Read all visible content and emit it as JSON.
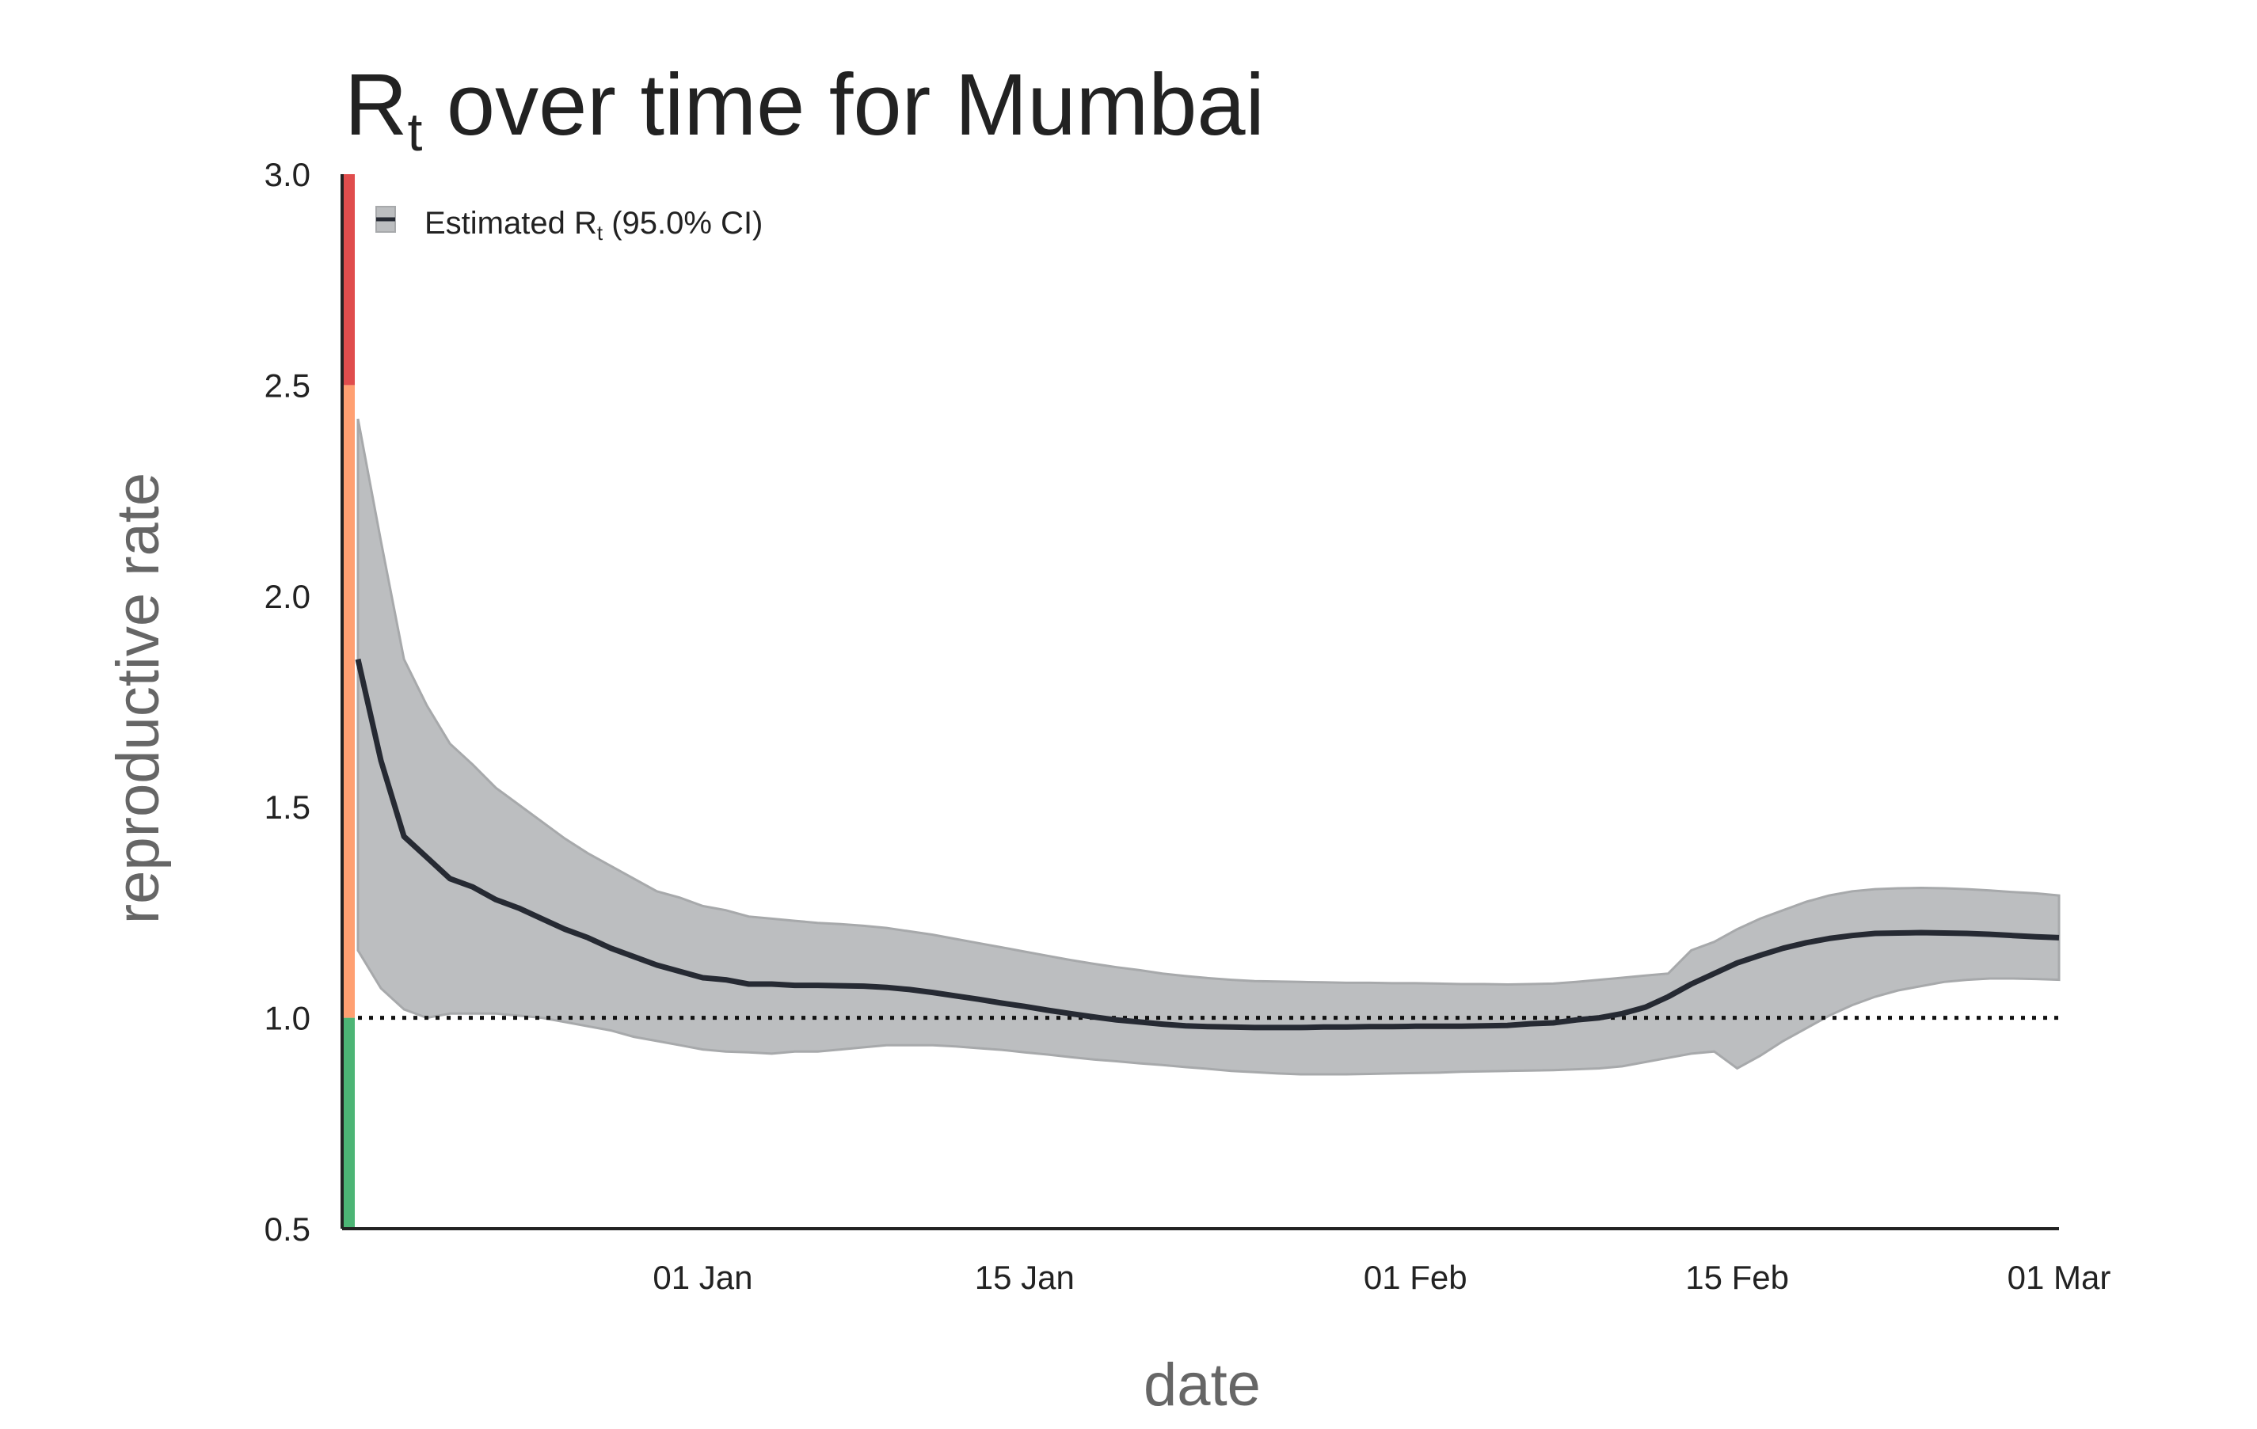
{
  "chart_data": {
    "type": "line",
    "title": "R",
    "title_subscript": "t",
    "title_suffix": " over time for Mumbai",
    "xlabel": "date",
    "ylabel": "reproductive rate",
    "x_range": [
      "2020-12-17",
      "2021-03-01"
    ],
    "ylim": [
      0.5,
      3.0
    ],
    "y_ticks": [
      "0.5",
      "1.0",
      "1.5",
      "2.0",
      "2.5",
      "3.0"
    ],
    "x_ticks": [
      {
        "date": "2021-01-01",
        "label": "01 Jan"
      },
      {
        "date": "2021-01-15",
        "label": "15 Jan"
      },
      {
        "date": "2021-02-01",
        "label": "01 Feb"
      },
      {
        "date": "2021-02-15",
        "label": "15 Feb"
      },
      {
        "date": "2021-03-01",
        "label": "01 Mar"
      }
    ],
    "reference_line": {
      "y": 1.0,
      "style": "dotted"
    },
    "risk_bands": [
      {
        "from": 0.5,
        "to": 1.0,
        "color": "#4cb575"
      },
      {
        "from": 1.0,
        "to": 2.5,
        "color": "#ffa072"
      },
      {
        "from": 2.5,
        "to": 3.0,
        "color": "#e04d4d"
      }
    ],
    "legend": {
      "label": "Estimated R",
      "label_subscript": "t",
      "label_suffix": " (95.0% CI)",
      "placement": "top-left"
    },
    "grid": false,
    "colors": {
      "line": "#262a33",
      "band": "#bcbec0",
      "band_edge": "#a7a9ab",
      "axis": "#222222"
    },
    "series": [
      {
        "x": [
          "2020-12-17",
          "2020-12-18",
          "2020-12-19",
          "2020-12-20",
          "2020-12-21",
          "2020-12-22",
          "2020-12-23",
          "2020-12-24",
          "2020-12-25",
          "2020-12-26",
          "2020-12-27",
          "2020-12-28",
          "2020-12-29",
          "2020-12-30",
          "2020-12-31",
          "2021-01-01",
          "2021-01-02",
          "2021-01-03",
          "2021-01-04",
          "2021-01-05",
          "2021-01-06",
          "2021-01-07",
          "2021-01-08",
          "2021-01-09",
          "2021-01-10",
          "2021-01-11",
          "2021-01-12",
          "2021-01-13",
          "2021-01-14",
          "2021-01-15",
          "2021-01-16",
          "2021-01-17",
          "2021-01-18",
          "2021-01-19",
          "2021-01-20",
          "2021-01-21",
          "2021-01-22",
          "2021-01-23",
          "2021-01-24",
          "2021-01-25",
          "2021-01-26",
          "2021-01-27",
          "2021-01-28",
          "2021-01-29",
          "2021-01-30",
          "2021-01-31",
          "2021-02-01",
          "2021-02-02",
          "2021-02-03",
          "2021-02-04",
          "2021-02-05",
          "2021-02-06",
          "2021-02-07",
          "2021-02-08",
          "2021-02-09",
          "2021-02-10",
          "2021-02-11",
          "2021-02-12",
          "2021-02-13",
          "2021-02-14",
          "2021-02-15",
          "2021-02-16",
          "2021-02-17",
          "2021-02-18",
          "2021-02-19",
          "2021-02-20",
          "2021-02-21",
          "2021-02-22",
          "2021-02-23",
          "2021-02-24",
          "2021-02-25",
          "2021-02-26",
          "2021-02-27",
          "2021-02-28",
          "2021-03-01"
        ],
        "y": [
          1.85,
          1.61,
          1.43,
          1.38,
          1.33,
          1.31,
          1.28,
          1.26,
          1.235,
          1.21,
          1.19,
          1.165,
          1.145,
          1.125,
          1.11,
          1.095,
          1.09,
          1.08,
          1.08,
          1.077,
          1.077,
          1.076,
          1.075,
          1.072,
          1.067,
          1.06,
          1.052,
          1.044,
          1.035,
          1.027,
          1.018,
          1.01,
          1.002,
          0.995,
          0.99,
          0.985,
          0.981,
          0.979,
          0.978,
          0.977,
          0.977,
          0.977,
          0.978,
          0.978,
          0.979,
          0.979,
          0.98,
          0.98,
          0.98,
          0.981,
          0.982,
          0.986,
          0.988,
          0.995,
          1.0,
          1.01,
          1.025,
          1.05,
          1.08,
          1.105,
          1.13,
          1.148,
          1.165,
          1.178,
          1.188,
          1.195,
          1.2,
          1.201,
          1.202,
          1.201,
          1.2,
          1.198,
          1.195,
          1.192,
          1.19
        ],
        "lower": [
          1.16,
          1.07,
          1.02,
          1.0,
          1.01,
          1.01,
          1.01,
          1.005,
          1.0,
          0.99,
          0.98,
          0.97,
          0.955,
          0.945,
          0.935,
          0.925,
          0.92,
          0.918,
          0.915,
          0.92,
          0.92,
          0.925,
          0.93,
          0.935,
          0.935,
          0.935,
          0.932,
          0.928,
          0.924,
          0.918,
          0.913,
          0.907,
          0.901,
          0.897,
          0.892,
          0.888,
          0.883,
          0.879,
          0.874,
          0.871,
          0.868,
          0.866,
          0.866,
          0.866,
          0.867,
          0.868,
          0.869,
          0.87,
          0.872,
          0.873,
          0.874,
          0.875,
          0.876,
          0.878,
          0.88,
          0.885,
          0.895,
          0.905,
          0.915,
          0.92,
          0.88,
          0.91,
          0.945,
          0.975,
          1.005,
          1.03,
          1.05,
          1.065,
          1.075,
          1.085,
          1.09,
          1.093,
          1.093,
          1.092,
          1.09
        ],
        "upper": [
          2.42,
          2.13,
          1.85,
          1.74,
          1.65,
          1.6,
          1.545,
          1.505,
          1.465,
          1.425,
          1.39,
          1.36,
          1.33,
          1.3,
          1.285,
          1.265,
          1.255,
          1.24,
          1.235,
          1.23,
          1.225,
          1.222,
          1.218,
          1.213,
          1.205,
          1.197,
          1.187,
          1.177,
          1.167,
          1.157,
          1.147,
          1.137,
          1.128,
          1.12,
          1.113,
          1.105,
          1.099,
          1.094,
          1.09,
          1.087,
          1.086,
          1.085,
          1.084,
          1.083,
          1.083,
          1.082,
          1.082,
          1.081,
          1.08,
          1.08,
          1.079,
          1.08,
          1.081,
          1.085,
          1.09,
          1.095,
          1.1,
          1.105,
          1.16,
          1.18,
          1.21,
          1.235,
          1.255,
          1.275,
          1.29,
          1.3,
          1.305,
          1.307,
          1.308,
          1.307,
          1.305,
          1.302,
          1.298,
          1.295,
          1.29
        ]
      }
    ]
  }
}
